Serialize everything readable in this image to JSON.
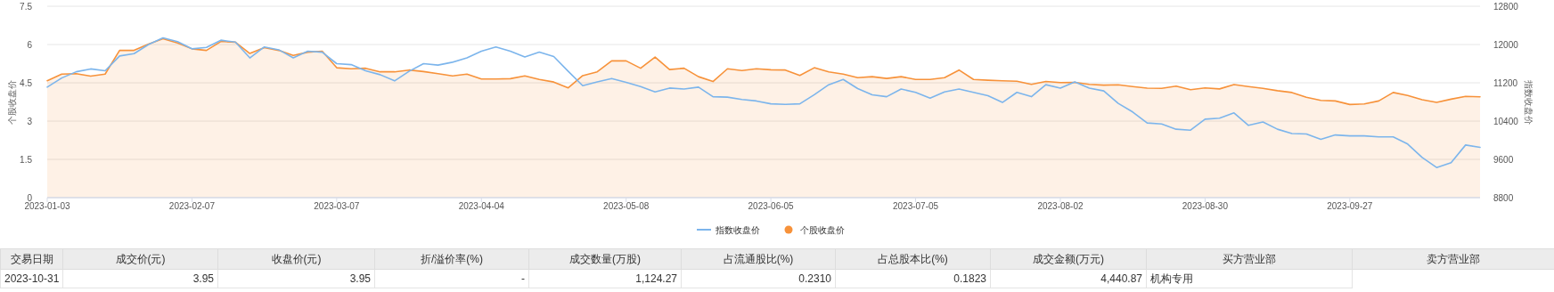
{
  "chart_data": [
    {
      "type": "line",
      "ylabel": "个股收盘价",
      "y2label": "指数收盘价",
      "ylim": [
        0,
        7.5
      ],
      "yticks": [
        0,
        1.5,
        3,
        4.5,
        6,
        7.5
      ],
      "y2lim": [
        8800,
        12800
      ],
      "y2ticks": [
        8800,
        9600,
        10400,
        11200,
        12000,
        12800
      ],
      "grid": "y",
      "legend": "bottom",
      "categories": [
        "2023-01-03",
        null,
        null,
        null,
        null,
        null,
        null,
        null,
        null,
        null,
        "2023-02-07",
        null,
        null,
        null,
        null,
        null,
        null,
        null,
        null,
        null,
        "2023-03-07",
        null,
        null,
        null,
        null,
        null,
        null,
        null,
        null,
        null,
        "2023-04-04",
        null,
        null,
        null,
        null,
        null,
        null,
        null,
        null,
        null,
        "2023-05-08",
        null,
        null,
        null,
        null,
        null,
        null,
        null,
        null,
        null,
        "2023-06-05",
        null,
        null,
        null,
        null,
        null,
        null,
        null,
        null,
        null,
        "2023-07-05",
        null,
        null,
        null,
        null,
        null,
        null,
        null,
        null,
        null,
        "2023-08-02",
        null,
        null,
        null,
        null,
        null,
        null,
        null,
        null,
        null,
        "2023-08-30",
        null,
        null,
        null,
        null,
        null,
        null,
        null,
        null,
        null,
        "2023-09-27",
        null,
        null,
        null,
        null,
        null,
        null,
        null,
        null,
        null
      ],
      "series": [
        {
          "name": "指数收盘价",
          "color": "#7cb5ec",
          "axis": "y2",
          "values": [
            11110,
            11300,
            11430,
            11490,
            11450,
            11760,
            11810,
            12000,
            12140,
            12060,
            11910,
            11940,
            12090,
            12050,
            11720,
            11950,
            11890,
            11720,
            11860,
            11840,
            11600,
            11580,
            11450,
            11370,
            11240,
            11440,
            11600,
            11570,
            11630,
            11720,
            11860,
            11950,
            11860,
            11740,
            11840,
            11750,
            11440,
            11140,
            11220,
            11290,
            11210,
            11120,
            11010,
            11090,
            11070,
            11110,
            10910,
            10900,
            10850,
            10820,
            10760,
            10750,
            10760,
            10950,
            11160,
            11270,
            11080,
            10950,
            10910,
            11070,
            11000,
            10880,
            11010,
            11070,
            11000,
            10930,
            10790,
            11000,
            10910,
            11160,
            11090,
            11220,
            11090,
            11030,
            10770,
            10590,
            10360,
            10340,
            10230,
            10210,
            10440,
            10460,
            10570,
            10310,
            10380,
            10230,
            10140,
            10130,
            10020,
            10110,
            10090,
            10090,
            10070,
            10070,
            9920,
            9640,
            9430,
            9530,
            9900,
            9850
          ]
        },
        {
          "name": "个股收盘价",
          "type": "area",
          "color": "#f7923a",
          "values": [
            4.58,
            4.84,
            4.86,
            4.76,
            4.84,
            5.77,
            5.77,
            6.02,
            6.23,
            6.06,
            5.83,
            5.77,
            6.12,
            6.09,
            5.65,
            5.88,
            5.77,
            5.57,
            5.7,
            5.74,
            5.09,
            5.05,
            5.07,
            4.93,
            4.93,
            5.0,
            4.94,
            4.86,
            4.77,
            4.84,
            4.65,
            4.65,
            4.66,
            4.77,
            4.63,
            4.53,
            4.3,
            4.78,
            4.93,
            5.36,
            5.36,
            5.07,
            5.51,
            5.02,
            5.07,
            4.74,
            4.55,
            5.05,
            4.98,
            5.05,
            5.01,
            5.0,
            4.79,
            5.09,
            4.93,
            4.84,
            4.7,
            4.74,
            4.67,
            4.74,
            4.63,
            4.63,
            4.7,
            5.0,
            4.63,
            4.6,
            4.58,
            4.56,
            4.44,
            4.55,
            4.51,
            4.52,
            4.44,
            4.41,
            4.42,
            4.35,
            4.29,
            4.28,
            4.37,
            4.23,
            4.3,
            4.26,
            4.43,
            4.35,
            4.28,
            4.19,
            4.12,
            3.93,
            3.81,
            3.79,
            3.65,
            3.67,
            3.79,
            4.12,
            4.0,
            3.84,
            3.73,
            3.86,
            3.97,
            3.95
          ]
        }
      ]
    },
    {
      "type": "other",
      "categories": [
        "交易日期",
        "成交价(元)",
        "收盘价(元)",
        "折/溢价率(%)",
        "成交数量(万股)",
        "占流通股比(%)",
        "占总股本比(%)",
        "成交金额(万元)",
        "买方营业部",
        "卖方营业部"
      ],
      "annotations": [
        "2023-10-31",
        "3.95",
        "3.95",
        "-",
        "1,124.27",
        "0.2310",
        "0.1823",
        "4,440.87",
        "机构专用"
      ]
    }
  ]
}
